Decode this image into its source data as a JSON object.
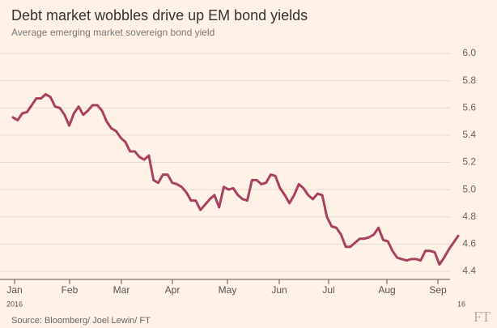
{
  "chart_data": {
    "type": "line",
    "title": "Debt market wobbles drive up EM bond yields",
    "subtitle": "Average emerging market sovereign bond yield",
    "source": "Source: Bloomberg/ Joel Lewin/ FT",
    "logo": "FT",
    "xticks": [
      "Jan",
      "Feb",
      "Mar",
      "Apr",
      "May",
      "Jun",
      "Jul",
      "Aug",
      "Sep"
    ],
    "year_labels": [
      "2016",
      "16"
    ],
    "series": [
      {
        "color": "#a8405f",
        "values": [
          5.53,
          5.51,
          5.56,
          5.57,
          5.62,
          5.67,
          5.67,
          5.7,
          5.68,
          5.61,
          5.6,
          5.55,
          5.47,
          5.56,
          5.61,
          5.55,
          5.58,
          5.62,
          5.62,
          5.58,
          5.5,
          5.45,
          5.43,
          5.38,
          5.35,
          5.28,
          5.28,
          5.24,
          5.22,
          5.25,
          5.07,
          5.05,
          5.11,
          5.11,
          5.05,
          5.04,
          5.02,
          4.98,
          4.92,
          4.92,
          4.85,
          4.89,
          4.93,
          4.96,
          4.87,
          5.02,
          5.0,
          5.01,
          4.96,
          4.93,
          4.92,
          5.07,
          5.07,
          5.04,
          5.05,
          5.11,
          5.1,
          5.01,
          4.96,
          4.9,
          4.96,
          5.04,
          5.01,
          4.96,
          4.93,
          4.97,
          4.96,
          4.8,
          4.73,
          4.72,
          4.67,
          4.58,
          4.58,
          4.61,
          4.64,
          4.64,
          4.65,
          4.67,
          4.72,
          4.63,
          4.62,
          4.55,
          4.5,
          4.49,
          4.48,
          4.49,
          4.49,
          4.48,
          4.55,
          4.55,
          4.54,
          4.45,
          4.5,
          4.56,
          4.61,
          4.66
        ]
      }
    ],
    "ylim": [
      4.4,
      6.0
    ],
    "yticks": [
      4.4,
      4.6,
      4.8,
      {
        "value": 5,
        "label": "5.0"
      },
      5.2,
      5.4,
      5.6,
      5.8,
      {
        "value": 6,
        "label": "6.0"
      }
    ],
    "grid": true
  }
}
